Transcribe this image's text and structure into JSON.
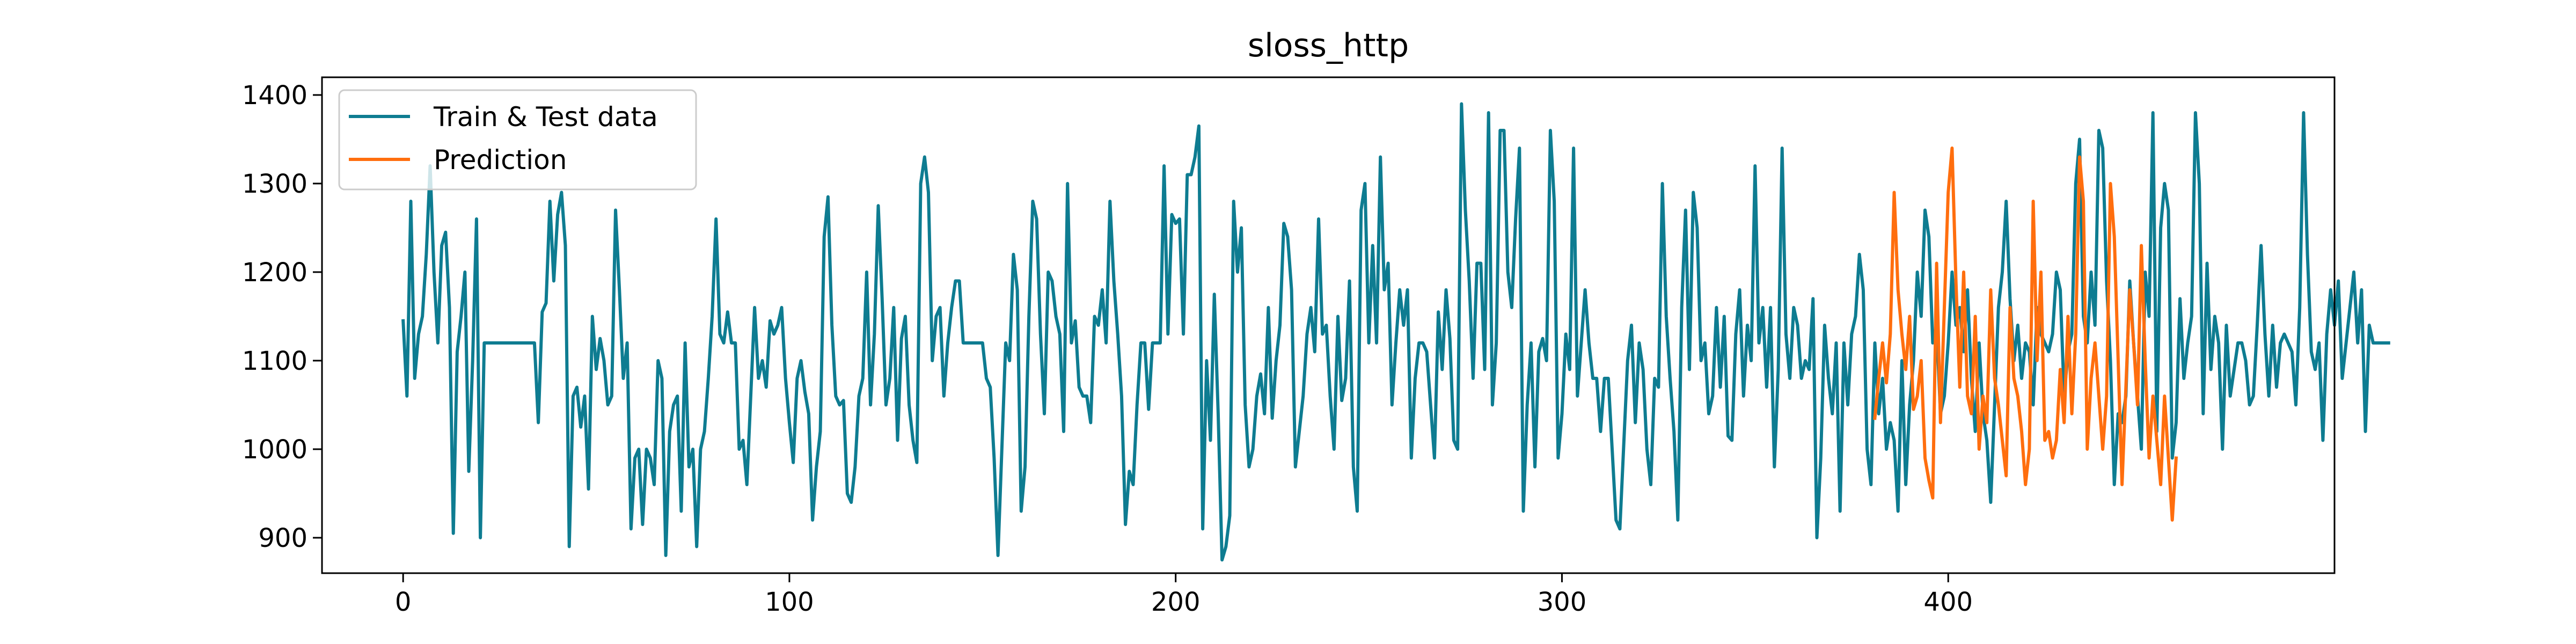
{
  "chart_data": {
    "type": "line",
    "title": "sloss_http",
    "xlabel": "",
    "ylabel": "",
    "xlim": [
      -21,
      500
    ],
    "ylim": [
      860,
      1420
    ],
    "x_ticks": [
      0,
      100,
      200,
      300,
      400
    ],
    "y_ticks": [
      900,
      1000,
      1100,
      1200,
      1300,
      1400
    ],
    "grid": false,
    "legend_position": "upper-left",
    "legend": [
      "Train & Test data",
      "Prediction"
    ],
    "series": [
      {
        "name": "Train & Test data",
        "color": "#0e7c91",
        "x_start": 0,
        "values": [
          1145,
          1060,
          1280,
          1080,
          1130,
          1150,
          1220,
          1320,
          1200,
          1120,
          1230,
          1245,
          1160,
          905,
          1110,
          1150,
          1200,
          975,
          1100,
          1260,
          900,
          1120,
          1120,
          1120,
          1120,
          1120,
          1120,
          1120,
          1120,
          1120,
          1120,
          1120,
          1120,
          1120,
          1120,
          1030,
          1155,
          1165,
          1280,
          1190,
          1265,
          1290,
          1230,
          890,
          1060,
          1070,
          1025,
          1060,
          955,
          1150,
          1090,
          1125,
          1100,
          1050,
          1060,
          1270,
          1180,
          1080,
          1120,
          910,
          990,
          1000,
          915,
          1000,
          990,
          960,
          1100,
          1080,
          880,
          1020,
          1050,
          1060,
          930,
          1120,
          980,
          1000,
          890,
          1000,
          1020,
          1080,
          1150,
          1260,
          1130,
          1120,
          1155,
          1120,
          1120,
          1000,
          1010,
          960,
          1060,
          1160,
          1080,
          1100,
          1070,
          1145,
          1130,
          1140,
          1160,
          1080,
          1030,
          985,
          1080,
          1100,
          1065,
          1040,
          920,
          980,
          1020,
          1240,
          1285,
          1140,
          1060,
          1050,
          1055,
          950,
          940,
          980,
          1060,
          1080,
          1200,
          1050,
          1130,
          1275,
          1170,
          1050,
          1080,
          1160,
          1010,
          1125,
          1150,
          1050,
          1010,
          985,
          1300,
          1330,
          1290,
          1100,
          1150,
          1160,
          1060,
          1120,
          1160,
          1190,
          1190,
          1120,
          1120,
          1120,
          1120,
          1120,
          1120,
          1080,
          1070,
          990,
          880,
          1000,
          1120,
          1100,
          1220,
          1180,
          930,
          980,
          1150,
          1280,
          1260,
          1130,
          1040,
          1200,
          1190,
          1150,
          1130,
          1020,
          1300,
          1120,
          1145,
          1070,
          1060,
          1060,
          1030,
          1150,
          1140,
          1180,
          1120,
          1280,
          1190,
          1130,
          1060,
          915,
          975,
          960,
          1050,
          1120,
          1120,
          1045,
          1120,
          1120,
          1120,
          1320,
          1130,
          1265,
          1255,
          1260,
          1130,
          1310,
          1310,
          1330,
          1365,
          910,
          1100,
          1010,
          1175,
          1040,
          875,
          890,
          925,
          1280,
          1200,
          1250,
          1050,
          980,
          1000,
          1060,
          1085,
          1040,
          1160,
          1035,
          1100,
          1140,
          1255,
          1240,
          1180,
          980,
          1020,
          1060,
          1130,
          1160,
          1110,
          1260,
          1130,
          1140,
          1060,
          1000,
          1150,
          1055,
          1080,
          1190,
          980,
          930,
          1270,
          1300,
          1120,
          1230,
          1120,
          1330,
          1180,
          1210,
          1050,
          1120,
          1180,
          1140,
          1180,
          990,
          1080,
          1120,
          1120,
          1110,
          1050,
          990,
          1155,
          1090,
          1180,
          1125,
          1010,
          1000,
          1390,
          1270,
          1190,
          1080,
          1210,
          1210,
          1090,
          1380,
          1050,
          1120,
          1360,
          1360,
          1200,
          1160,
          1260,
          1340,
          930,
          1050,
          1120,
          980,
          1110,
          1125,
          1100,
          1360,
          1280,
          990,
          1040,
          1130,
          1090,
          1340,
          1060,
          1120,
          1180,
          1120,
          1080,
          1080,
          1020,
          1080,
          1080,
          1000,
          920,
          910,
          1005,
          1100,
          1140,
          1030,
          1120,
          1090,
          1000,
          960,
          1080,
          1070,
          1300,
          1150,
          1080,
          1020,
          920,
          1160,
          1270,
          1090,
          1290,
          1250,
          1100,
          1120,
          1040,
          1060,
          1160,
          1070,
          1150,
          1015,
          1010,
          1130,
          1180,
          1060,
          1140,
          1100,
          1320,
          1120,
          1160,
          1070,
          1160,
          980,
          1090,
          1340,
          1130,
          1080,
          1160,
          1140,
          1080,
          1100,
          1090,
          1170,
          900,
          990,
          1140,
          1080,
          1040,
          1120,
          930,
          1120,
          1050,
          1130,
          1150,
          1220,
          1180,
          1000,
          960,
          1120,
          1040,
          1080,
          1000,
          1030,
          1010,
          930,
          1100,
          960,
          1050,
          1100,
          1200,
          1150,
          1270,
          1240,
          1120,
          1140,
          1040,
          1060,
          1120,
          1200,
          1140,
          1160,
          1110,
          1180,
          1080,
          1020,
          1120,
          1040,
          1010,
          940,
          1050,
          1160,
          1200,
          1280,
          1170,
          1100,
          1140,
          1080,
          1120,
          1110,
          1050,
          1160,
          1130,
          1120,
          1110,
          1130,
          1200,
          1180,
          1060,
          1110,
          1130,
          1300,
          1350,
          1150,
          1120,
          1200,
          1140,
          1360,
          1340,
          1190,
          1100,
          960,
          1040,
          1030,
          1060,
          1190,
          1120,
          1060,
          1000,
          1200,
          1150,
          1380,
          1020,
          1250,
          1300,
          1270,
          990,
          1030,
          1170,
          1080,
          1120,
          1150,
          1380,
          1300,
          1040,
          1210,
          1090,
          1150,
          1120,
          1000,
          1140,
          1060,
          1090,
          1120,
          1120,
          1100,
          1050,
          1060,
          1140,
          1230,
          1130,
          1060,
          1140,
          1070,
          1120,
          1130,
          1120,
          1110,
          1050,
          1160,
          1380,
          1220,
          1110,
          1090,
          1120,
          1010,
          1130,
          1180,
          1140,
          1190,
          1080,
          1120,
          1160,
          1200,
          1120,
          1180,
          1020,
          1140,
          1120,
          1120,
          1120,
          1120,
          1120
        ]
      },
      {
        "name": "Prediction",
        "color": "#ff6e0e",
        "x_start": 381,
        "values": [
          1035,
          1080,
          1120,
          1075,
          1130,
          1290,
          1180,
          1130,
          1090,
          1150,
          1045,
          1060,
          1100,
          990,
          965,
          945,
          1210,
          1030,
          1160,
          1290,
          1340,
          1190,
          1070,
          1200,
          1060,
          1040,
          1150,
          1000,
          1060,
          1030,
          1180,
          1080,
          1050,
          1010,
          970,
          1160,
          1080,
          1060,
          1020,
          960,
          1000,
          1280,
          1100,
          1200,
          1010,
          1020,
          990,
          1010,
          1090,
          1030,
          1150,
          1040,
          1130,
          1330,
          1280,
          1000,
          1080,
          1120,
          1060,
          1000,
          1060,
          1300,
          1240,
          1100,
          960,
          1070,
          1180,
          1120,
          1050,
          1230,
          1100,
          990,
          1060,
          1010,
          960,
          1060,
          990,
          920,
          990
        ]
      }
    ]
  }
}
